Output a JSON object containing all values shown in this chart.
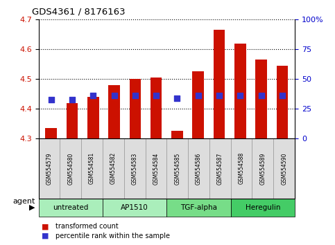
{
  "title": "GDS4361 / 8176163",
  "samples": [
    "GSM554579",
    "GSM554580",
    "GSM554581",
    "GSM554582",
    "GSM554583",
    "GSM554584",
    "GSM554585",
    "GSM554586",
    "GSM554587",
    "GSM554588",
    "GSM554589",
    "GSM554590"
  ],
  "bar_values": [
    4.335,
    4.42,
    4.44,
    4.48,
    4.5,
    4.505,
    4.325,
    4.525,
    4.665,
    4.62,
    4.565,
    4.545
  ],
  "percentile_values": [
    4.43,
    4.43,
    4.445,
    4.445,
    4.445,
    4.445,
    4.435,
    4.445,
    4.445,
    4.445,
    4.445,
    4.445
  ],
  "bar_bottom": 4.3,
  "ymin": 4.3,
  "ymax": 4.7,
  "y_ticks": [
    4.3,
    4.4,
    4.5,
    4.6,
    4.7
  ],
  "y2_ticks": [
    0,
    25,
    50,
    75,
    100
  ],
  "bar_color": "#cc1100",
  "percentile_color": "#3333cc",
  "agent_groups": [
    {
      "label": "untreated",
      "start": 0,
      "end": 3,
      "color": "#aaeebb"
    },
    {
      "label": "AP1510",
      "start": 3,
      "end": 6,
      "color": "#aaeebb"
    },
    {
      "label": "TGF-alpha",
      "start": 6,
      "end": 9,
      "color": "#77dd88"
    },
    {
      "label": "Heregulin",
      "start": 9,
      "end": 12,
      "color": "#44cc66"
    }
  ],
  "legend_bar_label": "transformed count",
  "legend_pct_label": "percentile rank within the sample",
  "agent_label": "agent",
  "background_color": "#ffffff",
  "plot_bg_color": "#ffffff",
  "grid_color": "#000000",
  "tick_label_color_left": "#cc1100",
  "tick_label_color_right": "#0000cc",
  "sample_box_color": "#dddddd",
  "bar_width": 0.55,
  "pct_marker_size": 28
}
